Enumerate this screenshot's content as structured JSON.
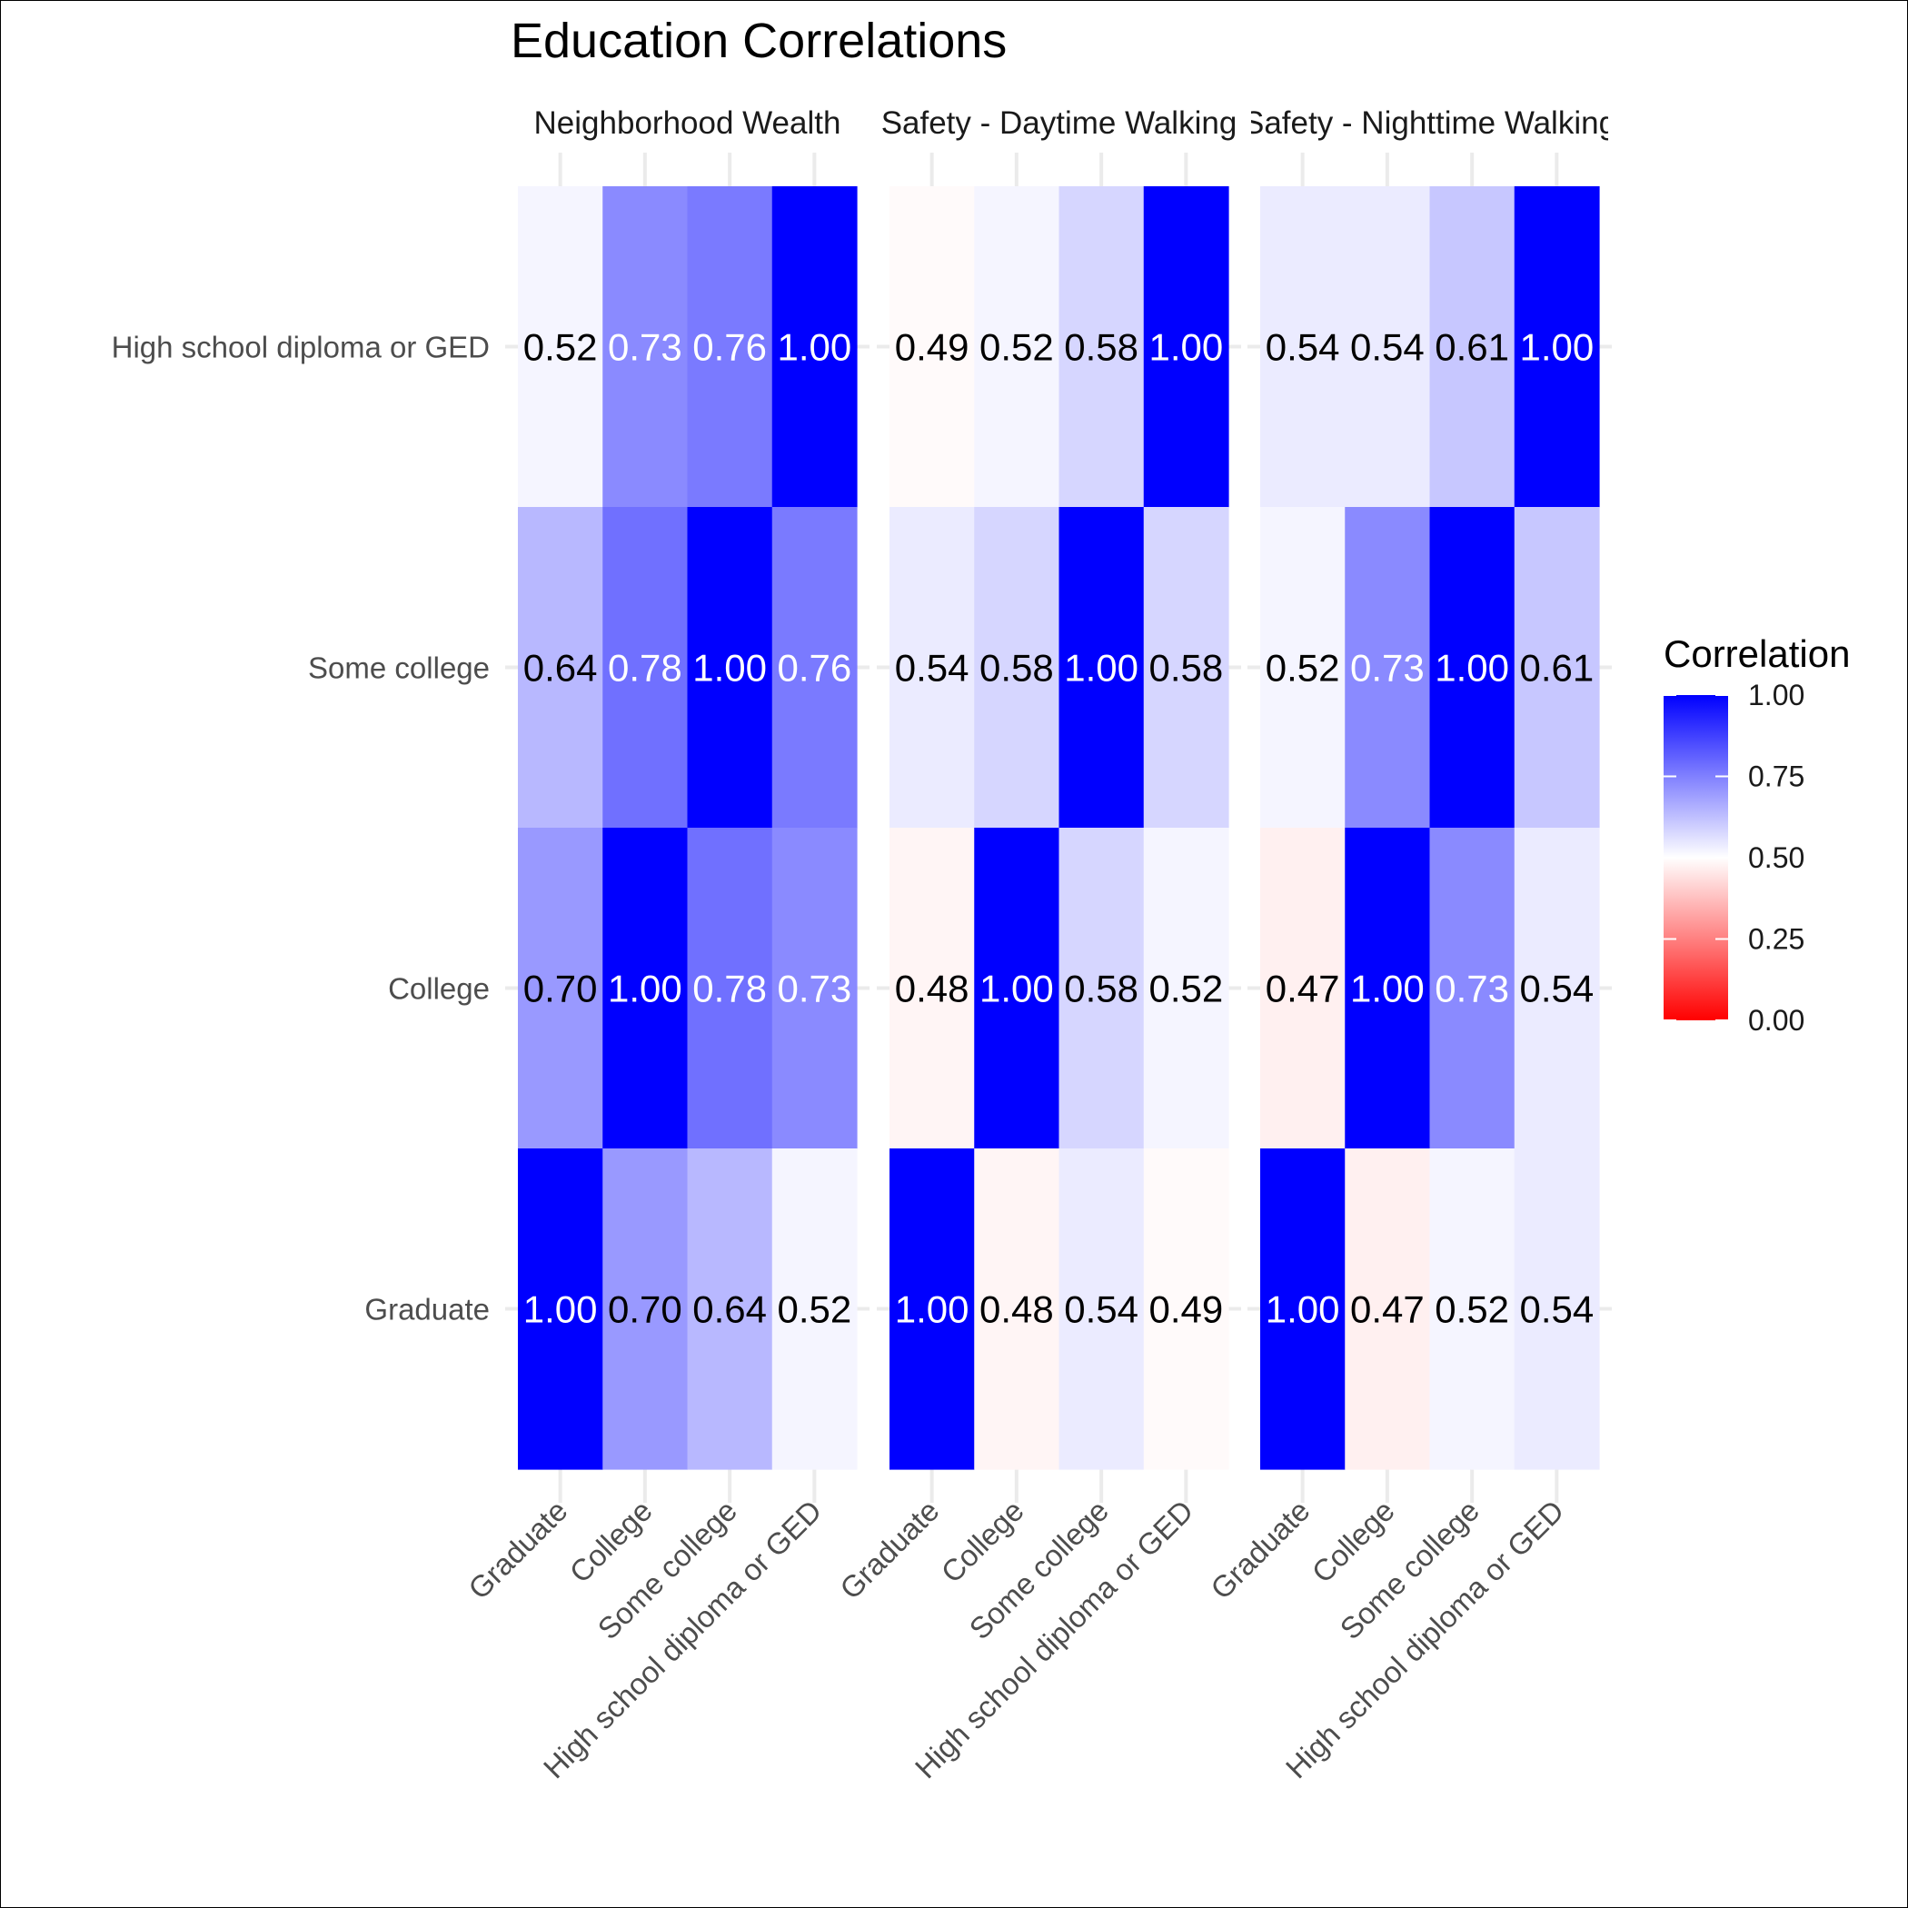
{
  "chart_data": {
    "type": "heatmap",
    "title": "Education Correlations",
    "row_categories": [
      "High school diploma or GED",
      "Some college",
      "College",
      "Graduate"
    ],
    "col_categories": [
      "Graduate",
      "College",
      "Some college",
      "High school diploma or GED"
    ],
    "panels": [
      {
        "name": "Neighborhood Wealth",
        "values": [
          [
            0.52,
            0.73,
            0.76,
            1.0
          ],
          [
            0.64,
            0.78,
            1.0,
            0.76
          ],
          [
            0.7,
            1.0,
            0.78,
            0.73
          ],
          [
            1.0,
            0.7,
            0.64,
            0.52
          ]
        ]
      },
      {
        "name": "Safety - Daytime Walking",
        "values": [
          [
            0.49,
            0.52,
            0.58,
            1.0
          ],
          [
            0.54,
            0.58,
            1.0,
            0.58
          ],
          [
            0.48,
            1.0,
            0.58,
            0.52
          ],
          [
            1.0,
            0.48,
            0.54,
            0.49
          ]
        ]
      },
      {
        "name": "Safety - Nighttime Walking",
        "values": [
          [
            0.54,
            0.54,
            0.61,
            1.0
          ],
          [
            0.52,
            0.73,
            1.0,
            0.61
          ],
          [
            0.47,
            1.0,
            0.73,
            0.54
          ],
          [
            1.0,
            0.47,
            0.52,
            0.54
          ]
        ]
      }
    ],
    "legend": {
      "title": "Correlation",
      "position": "right",
      "ticks": [
        "1.00",
        "0.75",
        "0.50",
        "0.25",
        "0.00"
      ],
      "limits": [
        0,
        1
      ],
      "midpoint": 0.5
    },
    "colors": {
      "low": "#ff0000",
      "mid": "#ffffff",
      "high": "#0000ff"
    },
    "grid": true
  }
}
